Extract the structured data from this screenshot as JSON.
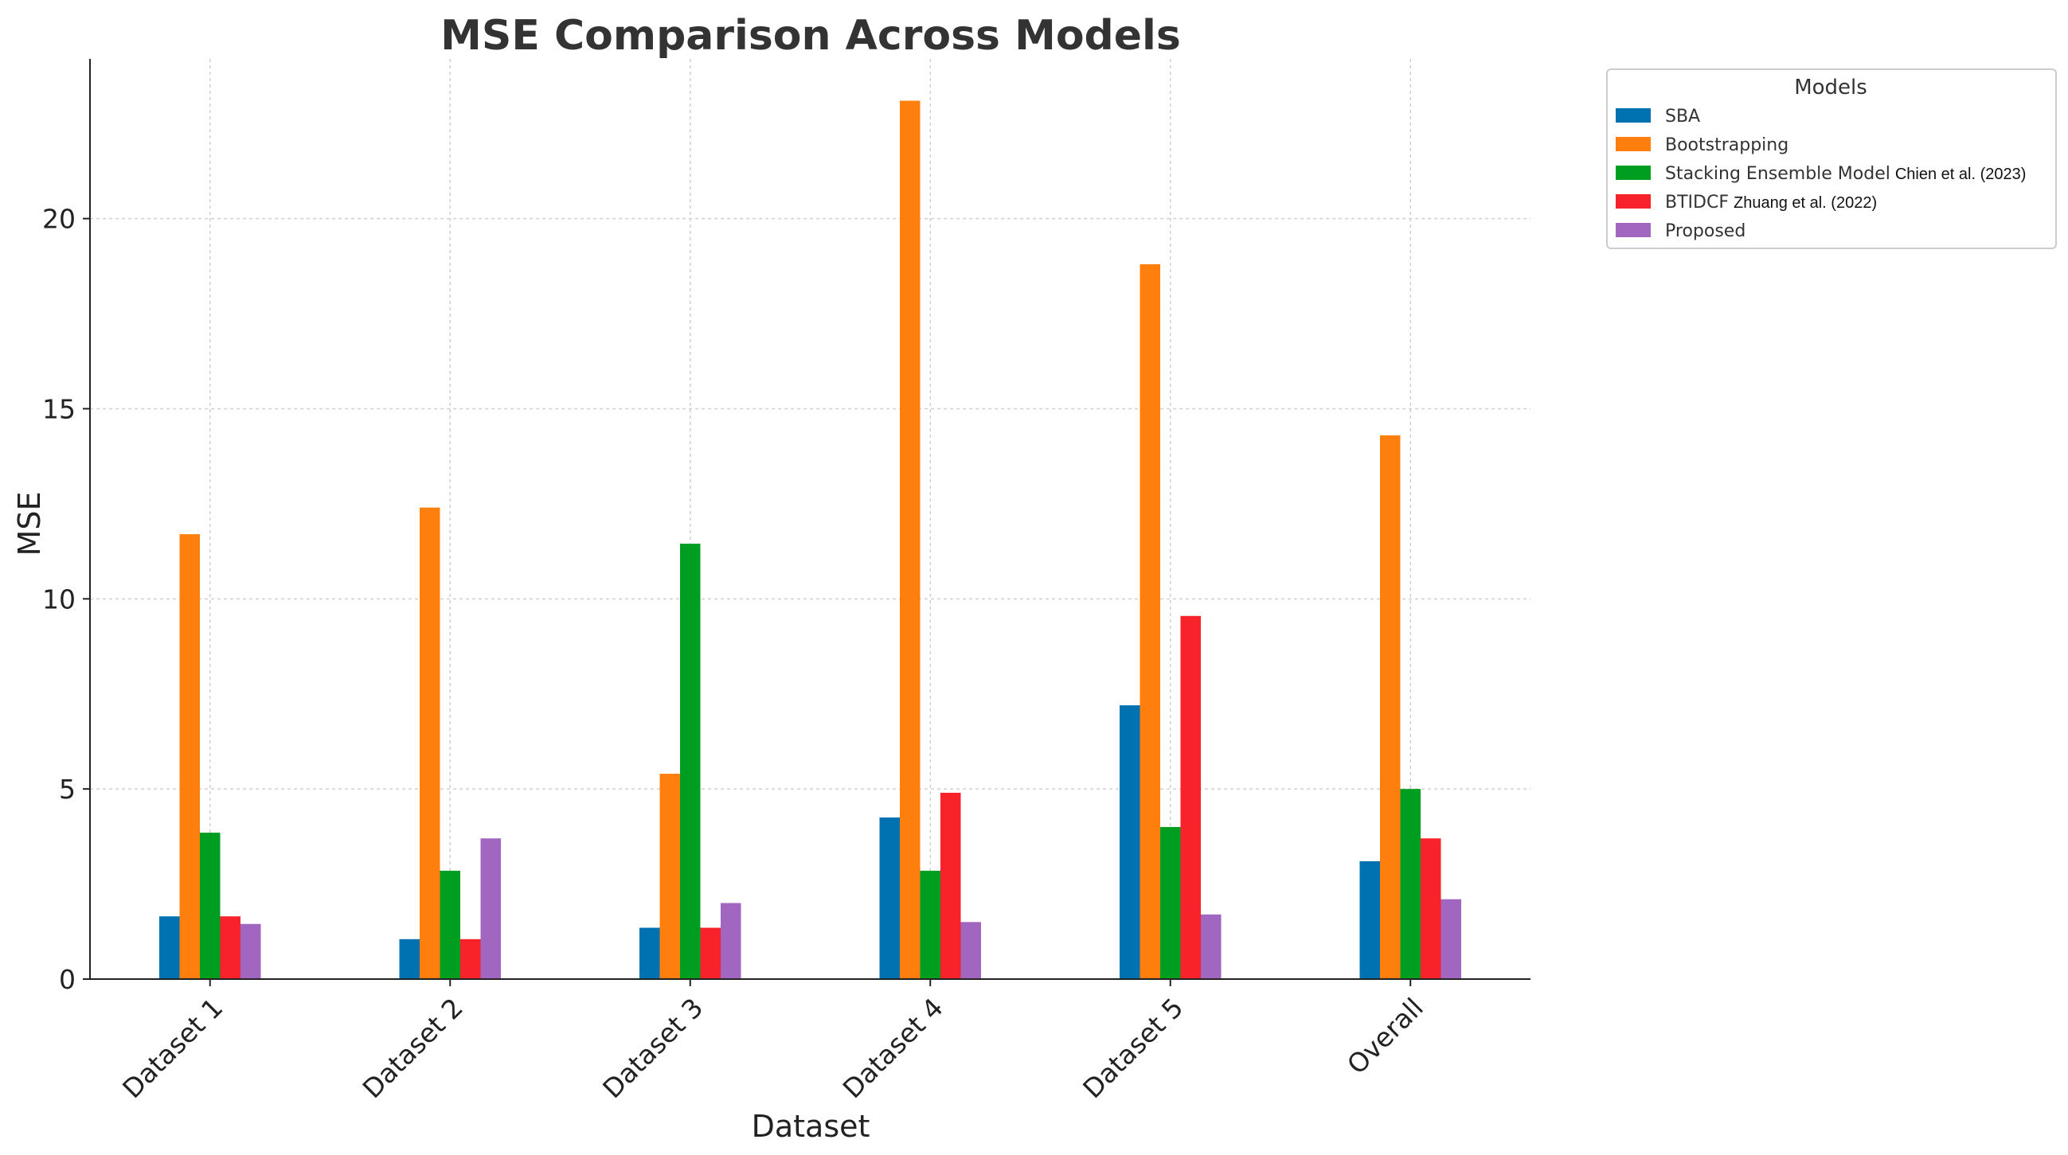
{
  "chart_data": {
    "type": "bar",
    "title": "MSE Comparison Across Models",
    "xlabel": "Dataset",
    "ylabel": "MSE",
    "ylim": [
      0,
      24.2
    ],
    "yticks": [
      0,
      5,
      10,
      15,
      20
    ],
    "grid": true,
    "legend_title": "Models",
    "legend_position": "outside-top-right",
    "categories": [
      "Dataset 1",
      "Dataset 2",
      "Dataset 3",
      "Dataset 4",
      "Dataset 5",
      "Overall"
    ],
    "series": [
      {
        "name": "SBA",
        "citation": "",
        "color": "#0072b2",
        "values": [
          1.65,
          1.05,
          1.35,
          4.25,
          7.2,
          3.1
        ]
      },
      {
        "name": "Bootstrapping",
        "citation": "",
        "color": "#ff7f0e",
        "values": [
          11.7,
          12.4,
          5.4,
          23.1,
          18.8,
          14.3
        ]
      },
      {
        "name": "Stacking Ensemble Model",
        "citation": "Chien et al. (2023)",
        "color": "#009e20",
        "values": [
          3.85,
          2.85,
          11.45,
          2.85,
          4.0,
          5.0
        ]
      },
      {
        "name": "BTIDCF",
        "citation": "Zhuang et al. (2022)",
        "color": "#f7222a",
        "values": [
          1.65,
          1.05,
          1.35,
          4.9,
          9.55,
          3.7
        ]
      },
      {
        "name": "Proposed",
        "citation": "",
        "color": "#a066c0",
        "values": [
          1.45,
          3.7,
          2.0,
          1.5,
          1.7,
          2.1
        ]
      }
    ]
  }
}
